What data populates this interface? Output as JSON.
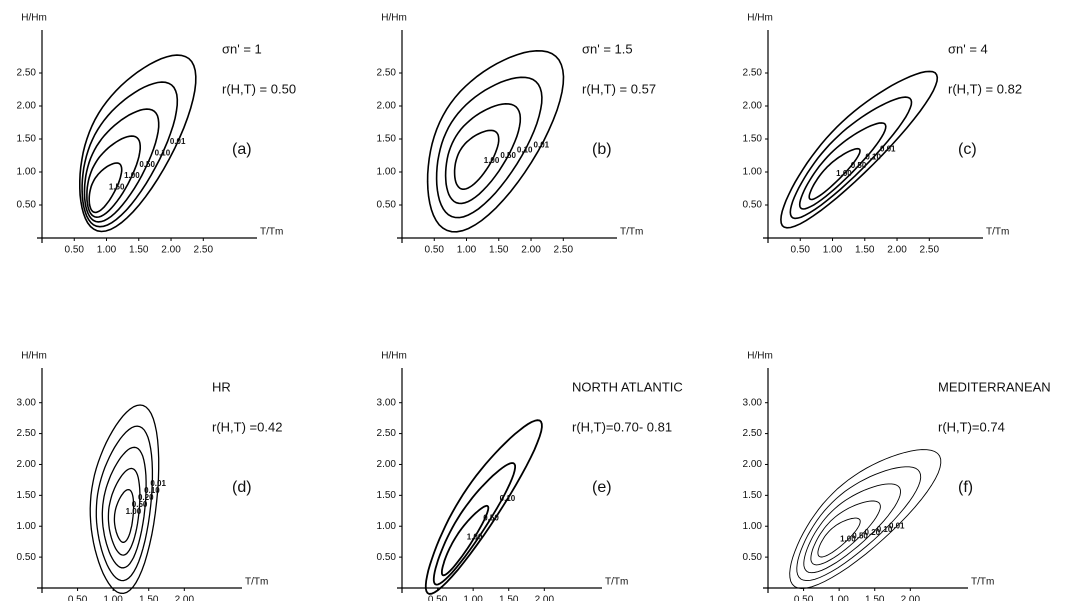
{
  "chart_data": [
    {
      "type": "contour",
      "label": "(a)",
      "x_label": "T/Tm",
      "y_label": "H/Hm",
      "annotations": [
        "σn' = 1",
        "r(H,T) = 0.50"
      ],
      "xlim": [
        0,
        3.1
      ],
      "ylim": [
        0,
        3.0
      ],
      "xticks": [
        {
          "value": 0.5,
          "label": "0.50"
        },
        {
          "value": 1,
          "label": "1.00"
        },
        {
          "value": 1.5,
          "label": "1.50"
        },
        {
          "value": 2,
          "label": "2.00"
        },
        {
          "value": 2.5,
          "label": "2.50"
        }
      ],
      "yticks": [
        {
          "value": 0.5,
          "label": "0.50"
        },
        {
          "value": 1,
          "label": "1.00"
        },
        {
          "value": 1.5,
          "label": "1.50"
        },
        {
          "value": 2,
          "label": "2.00"
        },
        {
          "value": 2.5,
          "label": "2.50"
        }
      ],
      "levels": [
        {
          "value": 0.01,
          "label": "0.01"
        },
        {
          "value": 0.1,
          "label": "0.10"
        },
        {
          "value": 0.5,
          "label": "0.50"
        },
        {
          "value": 1,
          "label": "1.00"
        },
        {
          "value": 1.5,
          "label": "1.50"
        }
      ]
    },
    {
      "type": "contour",
      "label": "(b)",
      "x_label": "T/Tm",
      "y_label": "H/Hm",
      "annotations": [
        "σn' = 1.5",
        "r(H,T) = 0.57"
      ],
      "xlim": [
        0,
        3.1
      ],
      "ylim": [
        0,
        3.0
      ],
      "xticks": [
        {
          "value": 0.5,
          "label": "0.50"
        },
        {
          "value": 1,
          "label": "1.00"
        },
        {
          "value": 1.5,
          "label": "1.50"
        },
        {
          "value": 2,
          "label": "2.00"
        },
        {
          "value": 2.5,
          "label": "2.50"
        }
      ],
      "yticks": [
        {
          "value": 0.5,
          "label": "0.50"
        },
        {
          "value": 1,
          "label": "1.00"
        },
        {
          "value": 1.5,
          "label": "1.50"
        },
        {
          "value": 2,
          "label": "2.00"
        },
        {
          "value": 2.5,
          "label": "2.50"
        }
      ],
      "levels": [
        {
          "value": 0.01,
          "label": "0.01"
        },
        {
          "value": 0.1,
          "label": "0.10"
        },
        {
          "value": 0.5,
          "label": "0.50"
        },
        {
          "value": 1,
          "label": "1.00"
        }
      ]
    },
    {
      "type": "contour",
      "label": "(c)",
      "x_label": "T/Tm",
      "y_label": "H/Hm",
      "annotations": [
        "σn' = 4",
        "r(H,T) = 0.82"
      ],
      "xlim": [
        0,
        3.1
      ],
      "ylim": [
        0,
        3.0
      ],
      "xticks": [
        {
          "value": 0.5,
          "label": "0.50"
        },
        {
          "value": 1,
          "label": "1.00"
        },
        {
          "value": 1.5,
          "label": "1.50"
        },
        {
          "value": 2,
          "label": "2.00"
        },
        {
          "value": 2.5,
          "label": "2.50"
        }
      ],
      "yticks": [
        {
          "value": 0.5,
          "label": "0.50"
        },
        {
          "value": 1,
          "label": "1.00"
        },
        {
          "value": 1.5,
          "label": "1.50"
        },
        {
          "value": 2,
          "label": "2.00"
        },
        {
          "value": 2.5,
          "label": "2.50"
        }
      ],
      "levels": [
        {
          "value": 0.01,
          "label": "0.01"
        },
        {
          "value": 0.1,
          "label": "0.10"
        },
        {
          "value": 0.5,
          "label": "0.50"
        },
        {
          "value": 1,
          "label": "1.00"
        }
      ]
    },
    {
      "type": "contour",
      "label": "(d)",
      "x_label": "T/Tm",
      "y_label": "H/Hm",
      "annotations": [
        "HR",
        "r(H,T) =0.42"
      ],
      "xlim": [
        0,
        2.6
      ],
      "ylim": [
        0,
        3.4
      ],
      "xticks": [
        {
          "value": 0.5,
          "label": "0.50"
        },
        {
          "value": 1,
          "label": "1.00"
        },
        {
          "value": 1.5,
          "label": "1.50"
        },
        {
          "value": 2,
          "label": "2.00"
        }
      ],
      "yticks": [
        {
          "value": 0.5,
          "label": "0.50"
        },
        {
          "value": 1,
          "label": "1.00"
        },
        {
          "value": 1.5,
          "label": "1.50"
        },
        {
          "value": 2,
          "label": "2.00"
        },
        {
          "value": 2.5,
          "label": "2.50"
        },
        {
          "value": 3,
          "label": "3.00"
        }
      ],
      "levels": [
        {
          "value": 0.01,
          "label": "0.01"
        },
        {
          "value": 0.1,
          "label": "0.10"
        },
        {
          "value": 0.2,
          "label": "0.20"
        },
        {
          "value": 0.5,
          "label": "0.50"
        },
        {
          "value": 1,
          "label": "1.00"
        }
      ]
    },
    {
      "type": "contour",
      "label": "(e)",
      "x_label": "T/Tm",
      "y_label": "H/Hm",
      "annotations": [
        "NORTH ATLANTIC",
        "r(H,T)=0.70- 0.81"
      ],
      "xlim": [
        0,
        2.6
      ],
      "ylim": [
        0,
        3.4
      ],
      "xticks": [
        {
          "value": 0.5,
          "label": "0.50"
        },
        {
          "value": 1,
          "label": "1.00"
        },
        {
          "value": 1.5,
          "label": "1.50"
        },
        {
          "value": 2,
          "label": "2.00"
        }
      ],
      "yticks": [
        {
          "value": 0.5,
          "label": "0.50"
        },
        {
          "value": 1,
          "label": "1.00"
        },
        {
          "value": 1.5,
          "label": "1.50"
        },
        {
          "value": 2,
          "label": "2.00"
        },
        {
          "value": 2.5,
          "label": "2.50"
        },
        {
          "value": 3,
          "label": "3.00"
        }
      ],
      "levels": [
        {
          "value": 0.1,
          "label": "0.10"
        },
        {
          "value": 0.5,
          "label": "0.50"
        },
        {
          "value": 1,
          "label": "1.00"
        }
      ]
    },
    {
      "type": "contour",
      "label": "(f)",
      "x_label": "T/Tm",
      "y_label": "H/Hm",
      "annotations": [
        "MEDITERRANEAN",
        "r(H,T)=0.74"
      ],
      "xlim": [
        0,
        2.6
      ],
      "ylim": [
        0,
        3.4
      ],
      "xticks": [
        {
          "value": 0.5,
          "label": "0.50"
        },
        {
          "value": 1,
          "label": "1.00"
        },
        {
          "value": 1.5,
          "label": "1.50"
        },
        {
          "value": 2,
          "label": "2.00"
        }
      ],
      "yticks": [
        {
          "value": 0.5,
          "label": "0.50"
        },
        {
          "value": 1,
          "label": "1.00"
        },
        {
          "value": 1.5,
          "label": "1.50"
        },
        {
          "value": 2,
          "label": "2.00"
        },
        {
          "value": 2.5,
          "label": "2.50"
        },
        {
          "value": 3,
          "label": "3.00"
        }
      ],
      "levels": [
        {
          "value": 0.01,
          "label": "0.01"
        },
        {
          "value": 0.1,
          "label": "0.10"
        },
        {
          "value": 0.2,
          "label": "0.20"
        },
        {
          "value": 0.5,
          "label": "0.50"
        },
        {
          "value": 1,
          "label": "1.00"
        }
      ]
    }
  ]
}
